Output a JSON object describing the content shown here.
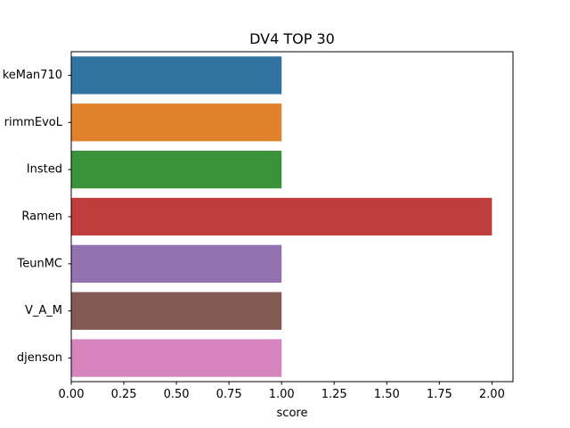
{
  "chart_data": {
    "type": "bar",
    "orientation": "horizontal",
    "title": "DV4 TOP 30",
    "xlabel": "score",
    "ylabel": "",
    "categories": [
      "keMan710",
      "rimmEvoL",
      "Insted",
      "Ramen",
      "TeunMC",
      "V_A_M",
      "djenson"
    ],
    "values": [
      1,
      1,
      1,
      2,
      1,
      1,
      1
    ],
    "colors": [
      "#3274a1",
      "#e1812c",
      "#3a923a",
      "#c03d3e",
      "#9372b2",
      "#845b53",
      "#d684bd"
    ],
    "xlim": [
      0,
      2.1
    ],
    "xticks": [
      "0.00",
      "0.25",
      "0.50",
      "0.75",
      "1.00",
      "1.25",
      "1.50",
      "1.75",
      "2.00"
    ],
    "grid": false,
    "legend": "none"
  }
}
